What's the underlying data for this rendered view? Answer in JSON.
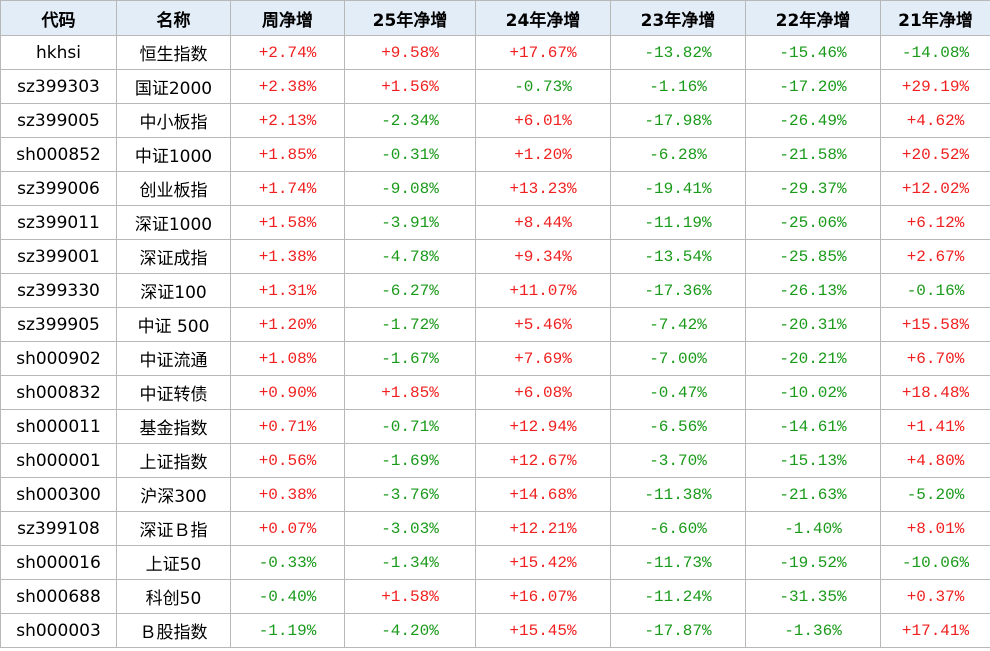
{
  "table": {
    "header": [
      "代码",
      "名称",
      "周净增",
      "25年净增",
      "24年净增",
      "23年净增",
      "22年净增",
      "21年净增"
    ],
    "rows": [
      [
        "hkhsi",
        "恒生指数",
        "+2.74%",
        "+9.58%",
        "+17.67%",
        "-13.82%",
        "-15.46%",
        "-14.08%"
      ],
      [
        "sz399303",
        "国证2000",
        "+2.38%",
        "+1.56%",
        "-0.73%",
        "-1.16%",
        "-17.20%",
        "+29.19%"
      ],
      [
        "sz399005",
        "中小板指",
        "+2.13%",
        "-2.34%",
        "+6.01%",
        "-17.98%",
        "-26.49%",
        "+4.62%"
      ],
      [
        "sh000852",
        "中证1000",
        "+1.85%",
        "-0.31%",
        "+1.20%",
        "-6.28%",
        "-21.58%",
        "+20.52%"
      ],
      [
        "sz399006",
        "创业板指",
        "+1.74%",
        "-9.08%",
        "+13.23%",
        "-19.41%",
        "-29.37%",
        "+12.02%"
      ],
      [
        "sz399011",
        "深证1000",
        "+1.58%",
        "-3.91%",
        "+8.44%",
        "-11.19%",
        "-25.06%",
        "+6.12%"
      ],
      [
        "sz399001",
        "深证成指",
        "+1.38%",
        "-4.78%",
        "+9.34%",
        "-13.54%",
        "-25.85%",
        "+2.67%"
      ],
      [
        "sz399330",
        "深证100",
        "+1.31%",
        "-6.27%",
        "+11.07%",
        "-17.36%",
        "-26.13%",
        "-0.16%"
      ],
      [
        "sz399905",
        "中证 500",
        "+1.20%",
        "-1.72%",
        "+5.46%",
        "-7.42%",
        "-20.31%",
        "+15.58%"
      ],
      [
        "sh000902",
        "中证流通",
        "+1.08%",
        "-1.67%",
        "+7.69%",
        "-7.00%",
        "-20.21%",
        "+6.70%"
      ],
      [
        "sh000832",
        "中证转债",
        "+0.90%",
        "+1.85%",
        "+6.08%",
        "-0.47%",
        "-10.02%",
        "+18.48%"
      ],
      [
        "sh000011",
        "基金指数",
        "+0.71%",
        "-0.71%",
        "+12.94%",
        "-6.56%",
        "-14.61%",
        "+1.41%"
      ],
      [
        "sh000001",
        "上证指数",
        "+0.56%",
        "-1.69%",
        "+12.67%",
        "-3.70%",
        "-15.13%",
        "+4.80%"
      ],
      [
        "sh000300",
        "沪深300",
        "+0.38%",
        "-3.76%",
        "+14.68%",
        "-11.38%",
        "-21.63%",
        "-5.20%"
      ],
      [
        "sz399108",
        "深证Ｂ指",
        "+0.07%",
        "-3.03%",
        "+12.21%",
        "-6.60%",
        "-1.40%",
        "+8.01%"
      ],
      [
        "sh000016",
        "上证50",
        "-0.33%",
        "-1.34%",
        "+15.42%",
        "-11.73%",
        "-19.52%",
        "-10.06%"
      ],
      [
        "sh000688",
        "科创50",
        "-0.40%",
        "+1.58%",
        "+16.07%",
        "-11.24%",
        "-31.35%",
        "+0.37%"
      ],
      [
        "sh000003",
        "Ｂ股指数",
        "-1.19%",
        "-4.20%",
        "+15.45%",
        "-17.87%",
        "-1.36%",
        "+17.41%"
      ]
    ]
  }
}
